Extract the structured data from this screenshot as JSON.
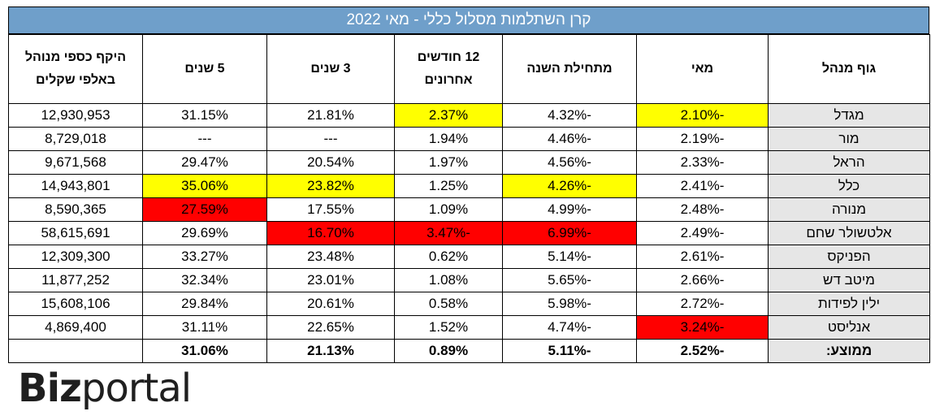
{
  "title": "קרן השתלמות מסלול כללי - מאי 2022",
  "headers": {
    "manager": "גוף מנהל",
    "may": "מאי",
    "ytd": "מתחילת השנה",
    "m12": "12 חודשים אחרונים",
    "y3": "3 שנים",
    "y5": "5 שנים",
    "aum": "היקף כספי מנוהל באלפי שקלים"
  },
  "rows": [
    {
      "name": "מגדל",
      "may": "-2.10%",
      "ytd": "-4.32%",
      "m12": "2.37%",
      "y3": "21.81%",
      "y5": "31.15%",
      "aum": "12,930,953",
      "hl": {
        "may": "yellow",
        "m12": "yellow"
      }
    },
    {
      "name": "מור",
      "may": "-2.19%",
      "ytd": "-4.46%",
      "m12": "1.94%",
      "y3": "---",
      "y5": "---",
      "aum": "8,729,018",
      "hl": {}
    },
    {
      "name": "הראל",
      "may": "-2.33%",
      "ytd": "-4.56%",
      "m12": "1.97%",
      "y3": "20.54%",
      "y5": "29.47%",
      "aum": "9,671,568",
      "hl": {}
    },
    {
      "name": "כלל",
      "may": "-2.41%",
      "ytd": "-4.26%",
      "m12": "1.25%",
      "y3": "23.82%",
      "y5": "35.06%",
      "aum": "14,943,801",
      "hl": {
        "ytd": "yellow",
        "y3": "yellow",
        "y5": "yellow"
      }
    },
    {
      "name": "מנורה",
      "may": "-2.48%",
      "ytd": "-4.99%",
      "m12": "1.09%",
      "y3": "17.55%",
      "y5": "27.59%",
      "aum": "8,590,365",
      "hl": {
        "y5": "red"
      }
    },
    {
      "name": "אלטשולר שחם",
      "may": "-2.49%",
      "ytd": "-6.99%",
      "m12": "-3.47%",
      "y3": "16.70%",
      "y5": "29.69%",
      "aum": "58,615,691",
      "hl": {
        "ytd": "red",
        "m12": "red",
        "y3": "red"
      }
    },
    {
      "name": "הפניקס",
      "may": "-2.61%",
      "ytd": "-5.14%",
      "m12": "0.62%",
      "y3": "23.48%",
      "y5": "33.27%",
      "aum": "12,309,300",
      "hl": {}
    },
    {
      "name": "מיטב דש",
      "may": "-2.66%",
      "ytd": "-5.65%",
      "m12": "1.08%",
      "y3": "23.01%",
      "y5": "32.34%",
      "aum": "11,877,252",
      "hl": {}
    },
    {
      "name": "ילין לפידות",
      "may": "-2.72%",
      "ytd": "-5.98%",
      "m12": "0.58%",
      "y3": "20.61%",
      "y5": "29.84%",
      "aum": "15,608,106",
      "hl": {}
    },
    {
      "name": "אנליסט",
      "may": "-3.24%",
      "ytd": "-4.74%",
      "m12": "1.52%",
      "y3": "22.65%",
      "y5": "31.11%",
      "aum": "4,869,400",
      "hl": {
        "may": "red"
      }
    }
  ],
  "average": {
    "label": "ממוצע:",
    "may": "-2.52%",
    "ytd": "-5.11%",
    "m12": "0.89%",
    "y3": "21.13%",
    "y5": "31.06%",
    "aum": ""
  },
  "logo": {
    "bold": "Biz",
    "light": "portal"
  },
  "colors": {
    "title_bg": "#6f9fca",
    "highlight_yellow": "#ffff00",
    "highlight_red": "#ff0000",
    "name_bg": "#e6e6e6"
  }
}
